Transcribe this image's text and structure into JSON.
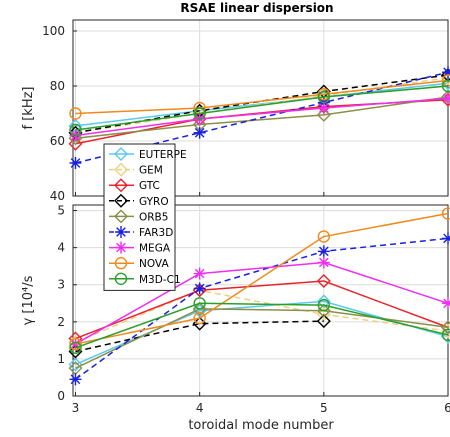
{
  "chart_data": {
    "type": "line",
    "title": "RSAE linear dispersion",
    "xlabel": "toroidal mode number",
    "x": [
      3,
      4,
      5,
      6
    ],
    "xlim": [
      2.98,
      6
    ],
    "xticks": [
      "3",
      "4",
      "5",
      "6"
    ],
    "panels": [
      {
        "ylabel": "f [kHz]",
        "ylim": [
          40,
          104
        ],
        "yticks": [
          40,
          60,
          80,
          100
        ],
        "ytick_labels": [
          "40",
          "60",
          "80",
          "100"
        ],
        "grid": true,
        "series": [
          {
            "name": "EUTERPE",
            "values": [
              65.5,
              71,
              76,
              81
            ]
          },
          {
            "name": "GEM",
            "values": [
              63,
              70,
              76.5,
              83
            ]
          },
          {
            "name": "GTC",
            "values": [
              59,
              68,
              72.5,
              75
            ]
          },
          {
            "name": "GYRO",
            "values": [
              63,
              71,
              78,
              84
            ]
          },
          {
            "name": "ORB5",
            "values": [
              61,
              66,
              69.5,
              76
            ]
          },
          {
            "name": "FAR3D",
            "values": [
              52,
              63,
              74,
              85
            ]
          },
          {
            "name": "MEGA",
            "values": [
              62,
              68,
              72,
              75.5
            ]
          },
          {
            "name": "NOVA",
            "values": [
              70,
              72,
              77,
              82
            ]
          },
          {
            "name": "M3D-C1",
            "values": [
              64,
              70,
              76,
              80
            ]
          }
        ]
      },
      {
        "ylabel": "γ [10⁴/s",
        "ylim": [
          0,
          5.15
        ],
        "yticks": [
          0,
          1,
          2,
          3,
          4,
          5
        ],
        "ytick_labels": [
          "0",
          "1",
          "2",
          "3",
          "4",
          "5"
        ],
        "grid": true,
        "series": [
          {
            "name": "EUTERPE",
            "values": [
              0.85,
              2.3,
              2.55,
              1.6
            ]
          },
          {
            "name": "GEM",
            "values": [
              1.45,
              2.85,
              2.2,
              1.75
            ]
          },
          {
            "name": "GTC",
            "values": [
              1.55,
              2.85,
              3.1,
              1.85
            ]
          },
          {
            "name": "GYRO",
            "values": [
              1.2,
              1.95,
              2.02,
              null
            ]
          },
          {
            "name": "ORB5",
            "values": [
              0.75,
              2.35,
              2.3,
              1.85
            ]
          },
          {
            "name": "FAR3D",
            "values": [
              0.45,
              2.9,
              3.9,
              4.25
            ]
          },
          {
            "name": "MEGA",
            "values": [
              1.4,
              3.3,
              3.6,
              2.5
            ]
          },
          {
            "name": "NOVA",
            "values": [
              1.4,
              2.1,
              4.3,
              4.92
            ]
          },
          {
            "name": "M3D-C1",
            "values": [
              1.3,
              2.5,
              2.45,
              1.65
            ]
          }
        ]
      }
    ],
    "legend": {
      "placement": "center-left",
      "entries": [
        "EUTERPE",
        "GEM",
        "GTC",
        "GYRO",
        "ORB5",
        "FAR3D",
        "MEGA",
        "NOVA",
        "M3D-C1"
      ]
    },
    "styles": {
      "EUTERPE": {
        "color": "#5bc8f0",
        "marker": "diamond",
        "dash": "solid"
      },
      "GEM": {
        "color": "#f0d080",
        "marker": "diamond",
        "dash": "dashed"
      },
      "GTC": {
        "color": "#e8242a",
        "marker": "diamond",
        "dash": "solid"
      },
      "GYRO": {
        "color": "#000000",
        "marker": "diamond",
        "dash": "dashed"
      },
      "ORB5": {
        "color": "#8a9048",
        "marker": "diamond",
        "dash": "solid"
      },
      "FAR3D": {
        "color": "#1a20e0",
        "marker": "asterisk",
        "dash": "dashed"
      },
      "MEGA": {
        "color": "#ee2ef0",
        "marker": "asterisk",
        "dash": "solid"
      },
      "NOVA": {
        "color": "#f08a1c",
        "marker": "circle",
        "dash": "solid"
      },
      "M3D-C1": {
        "color": "#2aa02a",
        "marker": "circle",
        "dash": "solid"
      }
    }
  }
}
